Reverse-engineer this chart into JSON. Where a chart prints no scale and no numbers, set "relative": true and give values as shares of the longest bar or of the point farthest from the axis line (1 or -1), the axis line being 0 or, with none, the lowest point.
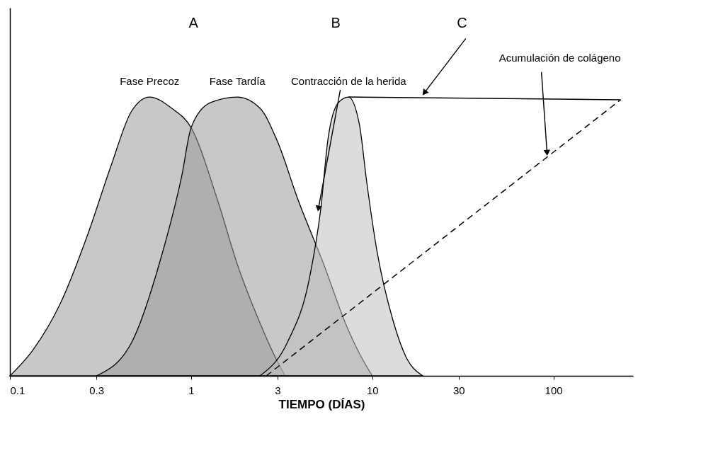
{
  "chart_data": {
    "type": "area",
    "xlabel": "TIEMPO (DÍAS)",
    "log": "x",
    "xlim": [
      0.1,
      275
    ],
    "xticks": [
      0.1,
      0.3,
      1,
      3,
      10,
      30,
      100
    ],
    "relative": true,
    "annotations": [
      "A",
      "B",
      "C"
    ],
    "series": [
      {
        "name": "Fase Precoz",
        "color": "#9a9a9a",
        "x": [
          0.1,
          0.133,
          0.19,
          0.27,
          0.36,
          0.47,
          0.59,
          0.78,
          1,
          1.4,
          1.8,
          2.4,
          2.9,
          3.3
        ],
        "values": [
          0,
          0.09,
          0.26,
          0.51,
          0.75,
          0.95,
          1.0,
          0.96,
          0.89,
          0.63,
          0.4,
          0.19,
          0.07,
          0
        ]
      },
      {
        "name": "Fase Tardía",
        "color": "#9a9a9a",
        "x": [
          0.3,
          0.47,
          0.68,
          0.89,
          1,
          1.28,
          1.8,
          2.4,
          3,
          3.9,
          5.4,
          7.1,
          8.5,
          10
        ],
        "values": [
          0,
          0.12,
          0.42,
          0.72,
          0.89,
          0.98,
          1.0,
          0.96,
          0.84,
          0.63,
          0.4,
          0.19,
          0.08,
          0
        ]
      },
      {
        "name": "Contracción de la herida",
        "color": "#c0c0c0",
        "x": [
          2.4,
          3.4,
          4.5,
          5.2,
          5.7,
          6.5,
          7.4,
          8.5,
          9.3,
          10.6,
          13,
          15.3,
          19
        ],
        "values": [
          0,
          0.12,
          0.35,
          0.6,
          0.85,
          0.98,
          1.0,
          0.9,
          0.7,
          0.45,
          0.2,
          0.07,
          0
        ]
      },
      {
        "type": "line",
        "color": "#000000",
        "x": [
          7.4,
          235
        ],
        "values": [
          1.0,
          0.99
        ]
      },
      {
        "name": "Acumulación de colágeno",
        "type": "line",
        "line_style": "dashed",
        "color": "#000000",
        "x": [
          2.6,
          235
        ],
        "values": [
          0,
          0.99
        ]
      }
    ]
  }
}
